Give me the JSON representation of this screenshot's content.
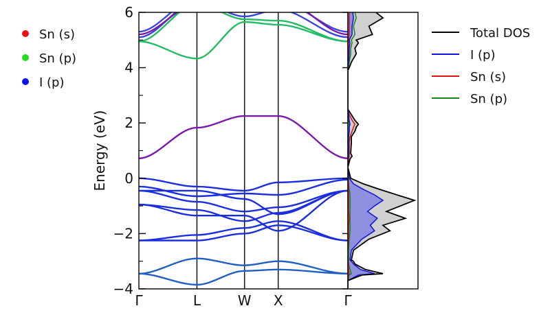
{
  "chart_data": [
    {
      "type": "line",
      "subtype": "band-structure",
      "ylabel": "Energy (eV)",
      "ylim": [
        -4,
        6
      ],
      "yticks": [
        "−4",
        "−2",
        "0",
        "2",
        "4",
        "6"
      ],
      "yticks_values": [
        -4,
        -2,
        0,
        2,
        4,
        6
      ],
      "kpoints": [
        "Γ",
        "L",
        "W",
        "X",
        "Γ"
      ],
      "kpoints_pos": [
        0,
        1,
        1.82,
        2.4,
        3.6
      ],
      "projection_legend": [
        {
          "name": "Sn (s)",
          "color": "#ee1111"
        },
        {
          "name": "Sn (p)",
          "color": "#22dd22"
        },
        {
          "name": "I (p)",
          "color": "#1111ee"
        }
      ],
      "colors": {
        "sn_p_band": "#22bb66",
        "mixed_band": "#7a1aa8",
        "i_p_band": "#1a2ee0",
        "deep_band": "#1f5fc4",
        "upper_mix": "#3a44dd"
      },
      "bands": [
        {
          "color": "#1f5fc4",
          "y": [
            -3.45,
            -3.85,
            -3.35,
            -3.3,
            -3.45
          ]
        },
        {
          "color": "#1f5fc4",
          "y": [
            -3.45,
            -2.9,
            -3.15,
            -3.0,
            -3.45
          ]
        },
        {
          "color": "#1a2ee0",
          "y": [
            -2.25,
            -2.25,
            -2.0,
            -1.7,
            -2.25
          ]
        },
        {
          "color": "#1a2ee0",
          "y": [
            -2.25,
            -2.05,
            -1.8,
            -1.55,
            -2.25
          ]
        },
        {
          "color": "#1a2ee0",
          "y": [
            -0.95,
            -1.35,
            -1.35,
            -1.9,
            -0.45
          ]
        },
        {
          "color": "#1a2ee0",
          "y": [
            -0.95,
            -1.15,
            -1.55,
            -1.25,
            -0.45
          ]
        },
        {
          "color": "#1a2ee0",
          "y": [
            -0.45,
            -0.85,
            -1.2,
            -1.05,
            -0.45
          ]
        },
        {
          "color": "#1a2ee0",
          "y": [
            -0.45,
            -0.45,
            -0.75,
            -1.3,
            -0.45
          ]
        },
        {
          "color": "#1a2ee0",
          "y": [
            -0.3,
            -0.65,
            -0.55,
            -0.6,
            -0.05
          ]
        },
        {
          "color": "#1a2ee0",
          "y": [
            0.0,
            -0.3,
            -0.45,
            -0.15,
            0.0
          ]
        },
        {
          "color": "#7a1aa8",
          "y": [
            0.72,
            1.83,
            2.25,
            2.25,
            0.72
          ]
        },
        {
          "color": "#22bb66",
          "y": [
            4.95,
            4.33,
            5.65,
            5.55,
            4.95
          ]
        },
        {
          "color": "#22bb66",
          "y": [
            4.95,
            6.3,
            5.75,
            5.7,
            4.95
          ]
        },
        {
          "color": "#3a44dd",
          "y": [
            5.1,
            6.4,
            5.85,
            6.1,
            5.1
          ]
        },
        {
          "color": "#3a44dd",
          "y": [
            5.3,
            6.5,
            6.1,
            6.4,
            5.3
          ]
        },
        {
          "color": "#7a1aa8",
          "y": [
            5.2,
            6.3,
            6.3,
            6.5,
            5.2
          ]
        }
      ]
    },
    {
      "type": "area",
      "subtype": "density-of-states",
      "legend": [
        {
          "name": "Total DOS",
          "color": "#000000"
        },
        {
          "name": "I (p)",
          "color": "#1111dd"
        },
        {
          "name": "Sn (s)",
          "color": "#dd1111"
        },
        {
          "name": "Sn (p)",
          "color": "#118811"
        }
      ],
      "colors": {
        "total_fill": "#d0d0d0",
        "ip_fill": "#8f8fe0"
      },
      "xlim": [
        0,
        1
      ],
      "energy": [
        -4.0,
        -3.7,
        -3.5,
        -3.45,
        -3.3,
        -3.1,
        -3.0,
        -2.95,
        -2.6,
        -2.2,
        -1.9,
        -1.7,
        -1.45,
        -1.2,
        -1.0,
        -0.8,
        -0.6,
        -0.4,
        -0.2,
        0.0,
        0.4,
        0.7,
        0.8,
        0.9,
        1.3,
        1.5,
        1.7,
        1.85,
        1.95,
        2.1,
        2.3,
        2.5,
        3.5,
        3.9,
        4.0,
        4.2,
        4.5,
        4.7,
        4.9,
        5.0,
        5.2,
        5.5,
        5.8,
        6.0
      ],
      "total_dos": [
        0.0,
        0.0,
        0.2,
        0.5,
        0.25,
        0.1,
        0.08,
        0.05,
        0.08,
        0.3,
        0.6,
        0.5,
        0.82,
        0.55,
        0.75,
        0.95,
        0.7,
        0.45,
        0.22,
        0.04,
        0.0,
        0.03,
        0.06,
        0.04,
        0.05,
        0.05,
        0.1,
        0.12,
        0.15,
        0.1,
        0.05,
        0.0,
        0.0,
        0.0,
        0.02,
        0.05,
        0.12,
        0.1,
        0.15,
        0.12,
        0.35,
        0.3,
        0.5,
        0.4
      ],
      "ip_dos": [
        0.0,
        0.0,
        0.15,
        0.38,
        0.18,
        0.08,
        0.05,
        0.03,
        0.05,
        0.2,
        0.38,
        0.32,
        0.42,
        0.28,
        0.38,
        0.5,
        0.38,
        0.22,
        0.08,
        0.02,
        0.0,
        0.0,
        0.01,
        0.01,
        0.01,
        0.01,
        0.02,
        0.02,
        0.03,
        0.02,
        0.01,
        0.0,
        0.0,
        0.0,
        0.0,
        0.01,
        0.02,
        0.02,
        0.03,
        0.02,
        0.06,
        0.06,
        0.08,
        0.07
      ],
      "sn_s_dos": [
        0.0,
        0.0,
        0.01,
        0.02,
        0.01,
        0.01,
        0.0,
        0.0,
        0.0,
        0.01,
        0.01,
        0.01,
        0.02,
        0.01,
        0.01,
        0.01,
        0.01,
        0.01,
        0.01,
        0.0,
        0.0,
        0.01,
        0.02,
        0.02,
        0.02,
        0.03,
        0.06,
        0.08,
        0.1,
        0.06,
        0.02,
        0.0,
        0.0,
        0.0,
        0.0,
        0.0,
        0.01,
        0.01,
        0.01,
        0.01,
        0.02,
        0.02,
        0.02,
        0.02
      ],
      "sn_p_dos": [
        0.0,
        0.0,
        0.02,
        0.05,
        0.03,
        0.01,
        0.01,
        0.01,
        0.01,
        0.02,
        0.03,
        0.03,
        0.03,
        0.03,
        0.03,
        0.03,
        0.03,
        0.02,
        0.01,
        0.01,
        0.0,
        0.0,
        0.01,
        0.01,
        0.01,
        0.01,
        0.02,
        0.02,
        0.02,
        0.01,
        0.01,
        0.0,
        0.0,
        0.0,
        0.01,
        0.02,
        0.04,
        0.04,
        0.06,
        0.05,
        0.1,
        0.08,
        0.12,
        0.1
      ]
    }
  ]
}
